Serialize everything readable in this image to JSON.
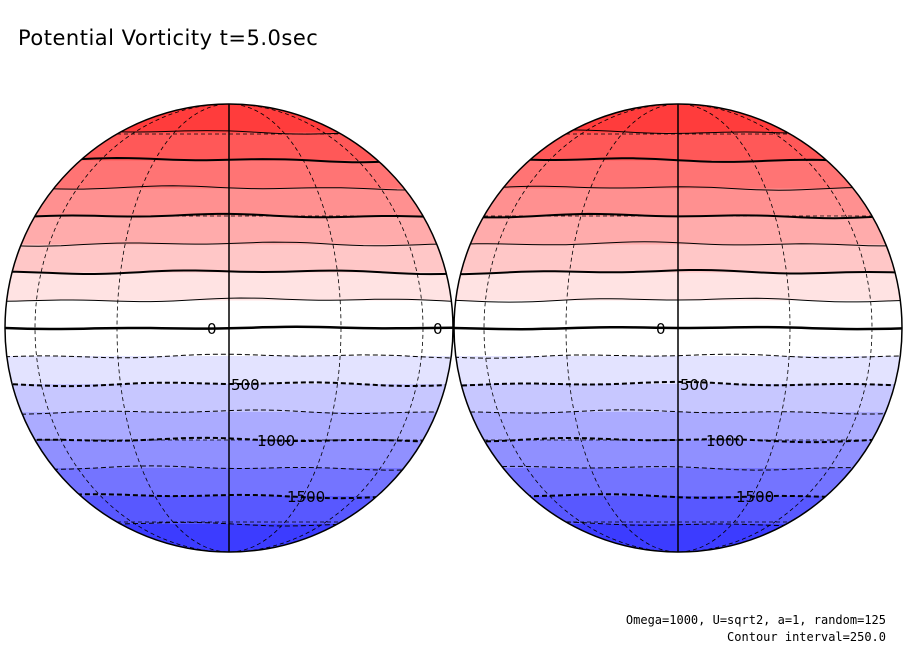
{
  "title": "Potential Vorticity t=5.0sec",
  "params": {
    "line1": "Omega=1000, U=sqrt2, a=1, random=125",
    "line2": "Contour interval=250.0"
  },
  "colors": {
    "positive": "#ff3c3c",
    "negative": "#3c3cff",
    "zero": "#ffffff"
  },
  "globes": [
    {
      "labels": [
        {
          "text": "0",
          "value": 0
        },
        {
          "text": "0",
          "value": 0,
          "side": "right"
        },
        {
          "text": "500",
          "value": -500
        },
        {
          "text": "1000",
          "value": -1000
        },
        {
          "text": "1500",
          "value": -1500
        }
      ]
    },
    {
      "labels": [
        {
          "text": "0",
          "value": 0
        },
        {
          "text": "500",
          "value": -500
        },
        {
          "text": "1000",
          "value": -1000
        },
        {
          "text": "1500",
          "value": -1500
        }
      ]
    }
  ]
}
